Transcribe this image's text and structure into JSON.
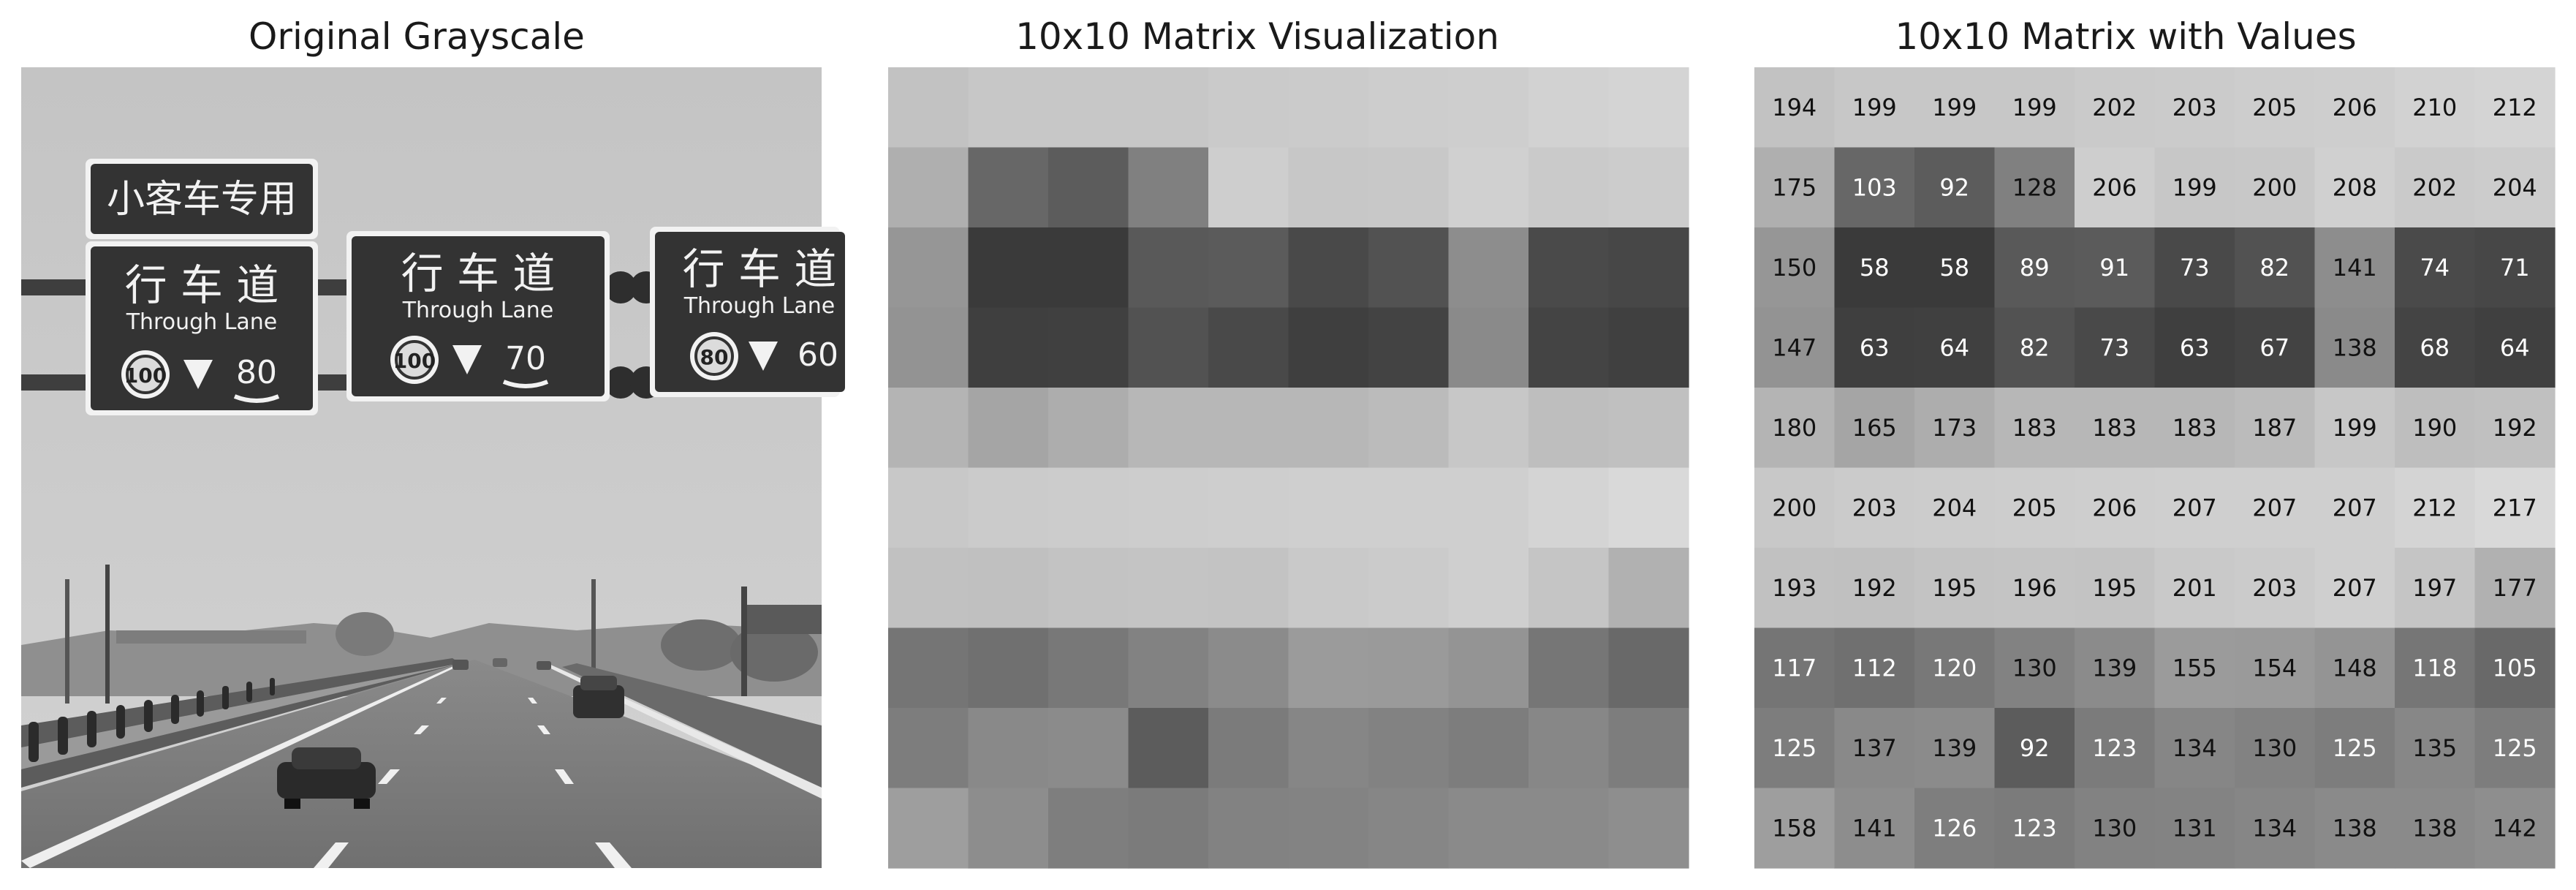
{
  "titles": {
    "original": "Original Grayscale",
    "visualization": "10x10 Matrix Visualization",
    "values": "10x10 Matrix with Values"
  },
  "photo": {
    "signs": [
      {
        "top": "小客车专用"
      },
      {
        "main": "行 车 道",
        "sub": "Through Lane",
        "limit_circle": "100",
        "limit_low": "80"
      },
      {
        "main": "行 车 道",
        "sub": "Through Lane",
        "limit_circle": "100",
        "limit_low": "70"
      },
      {
        "main": "行 车 道",
        "sub": "Through Lane",
        "limit_circle": "80",
        "limit_low": "60"
      }
    ]
  },
  "chart_data": [
    {
      "type": "heatmap",
      "title": "10x10 Matrix Visualization",
      "colormap": "gray",
      "vmin": 0,
      "vmax": 255,
      "show_values": false,
      "matrix": [
        [
          194,
          199,
          199,
          199,
          202,
          203,
          205,
          206,
          210,
          212
        ],
        [
          175,
          103,
          92,
          128,
          206,
          199,
          200,
          208,
          202,
          204
        ],
        [
          150,
          58,
          58,
          89,
          91,
          73,
          82,
          141,
          74,
          71
        ],
        [
          147,
          63,
          64,
          82,
          73,
          63,
          67,
          138,
          68,
          64
        ],
        [
          180,
          165,
          173,
          183,
          183,
          183,
          187,
          199,
          190,
          192
        ],
        [
          200,
          203,
          204,
          205,
          206,
          207,
          207,
          207,
          212,
          217
        ],
        [
          193,
          192,
          195,
          196,
          195,
          201,
          203,
          207,
          197,
          177
        ],
        [
          117,
          112,
          120,
          130,
          139,
          155,
          154,
          148,
          118,
          105
        ],
        [
          125,
          137,
          139,
          92,
          123,
          134,
          130,
          125,
          135,
          125
        ],
        [
          158,
          141,
          126,
          123,
          130,
          131,
          134,
          138,
          138,
          142
        ]
      ]
    },
    {
      "type": "heatmap",
      "title": "10x10 Matrix with Values",
      "colormap": "gray",
      "vmin": 0,
      "vmax": 255,
      "show_values": true,
      "matrix": [
        [
          194,
          199,
          199,
          199,
          202,
          203,
          205,
          206,
          210,
          212
        ],
        [
          175,
          103,
          92,
          128,
          206,
          199,
          200,
          208,
          202,
          204
        ],
        [
          150,
          58,
          58,
          89,
          91,
          73,
          82,
          141,
          74,
          71
        ],
        [
          147,
          63,
          64,
          82,
          73,
          63,
          67,
          138,
          68,
          64
        ],
        [
          180,
          165,
          173,
          183,
          183,
          183,
          187,
          199,
          190,
          192
        ],
        [
          200,
          203,
          204,
          205,
          206,
          207,
          207,
          207,
          212,
          217
        ],
        [
          193,
          192,
          195,
          196,
          195,
          201,
          203,
          207,
          197,
          177
        ],
        [
          117,
          112,
          120,
          130,
          139,
          155,
          154,
          148,
          118,
          105
        ],
        [
          125,
          137,
          139,
          92,
          123,
          134,
          130,
          125,
          135,
          125
        ],
        [
          158,
          141,
          126,
          123,
          130,
          131,
          134,
          138,
          138,
          142
        ]
      ]
    }
  ]
}
